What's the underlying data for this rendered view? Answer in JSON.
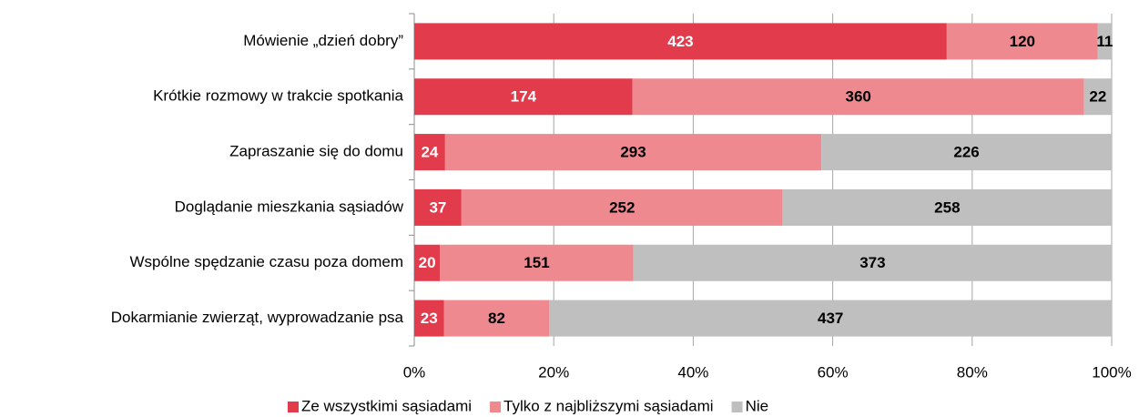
{
  "chart_data": {
    "type": "bar",
    "orientation": "horizontal",
    "stacked": "percent",
    "categories": [
      "Mówienie „dzień dobry”",
      "Krótkie rozmowy w trakcie spotkania",
      "Zapraszanie się do domu",
      "Doglądanie mieszkania sąsiadów",
      "Wspólne spędzanie czasu poza domem",
      "Dokarmianie zwierząt, wyprowadzanie psa"
    ],
    "series": [
      {
        "name": "Ze wszystkimi sąsiadami",
        "color": "#e23b4b",
        "label_color": "#ffffff",
        "values": [
          423,
          174,
          24,
          37,
          20,
          23
        ]
      },
      {
        "name": "Tylko z najbliższymi sąsiadami",
        "color": "#ee8a8f",
        "label_color": "#000000",
        "values": [
          120,
          360,
          293,
          252,
          151,
          82
        ]
      },
      {
        "name": "Nie",
        "color": "#bfbfbf",
        "label_color": "#000000",
        "values": [
          11,
          22,
          226,
          258,
          373,
          437
        ]
      }
    ],
    "xlim": [
      0,
      100
    ],
    "xticks": [
      {
        "value": 0,
        "label": "0%"
      },
      {
        "value": 20,
        "label": "20%"
      },
      {
        "value": 40,
        "label": "40%"
      },
      {
        "value": 60,
        "label": "60%"
      },
      {
        "value": 80,
        "label": "80%"
      },
      {
        "value": 100,
        "label": "100%"
      }
    ],
    "grid": true,
    "legend": "bottom"
  }
}
